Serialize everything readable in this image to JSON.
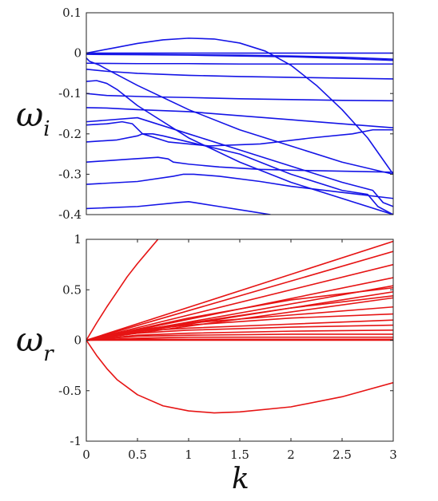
{
  "colors": {
    "top_series": "#1414e6",
    "bottom_series": "#e61414",
    "axes": "#222222"
  },
  "labels": {
    "top_ylabel_main": "ω",
    "top_ylabel_sub": "i",
    "bottom_ylabel_main": "ω",
    "bottom_ylabel_sub": "r",
    "xlabel": "k"
  },
  "chart_data": [
    {
      "type": "line",
      "xlabel": "",
      "ylabel": "ωi",
      "xlim": [
        0,
        3
      ],
      "ylim": [
        -0.4,
        0.1
      ],
      "xticks": [],
      "yticks": [
        0.1,
        0,
        -0.1,
        -0.2,
        -0.3,
        -0.4
      ],
      "ytick_labels": [
        "0.1",
        "0",
        "-0.1",
        "-0.2",
        "-0.3",
        "-0.4"
      ],
      "grid": false,
      "color": "#1414e6",
      "series": [
        {
          "x": [
            0,
            0.25,
            0.5,
            0.75,
            1.0,
            1.25,
            1.5,
            1.75,
            2.0,
            2.25,
            2.5,
            2.75,
            3.0
          ],
          "y": [
            0,
            0.012,
            0.024,
            0.033,
            0.037,
            0.035,
            0.025,
            0.005,
            -0.03,
            -0.08,
            -0.14,
            -0.21,
            -0.3
          ]
        },
        {
          "x": [
            0,
            0.5,
            1,
            1.5,
            2,
            2.5,
            3
          ],
          "y": [
            0,
            0,
            0,
            0,
            0,
            0,
            0
          ]
        },
        {
          "x": [
            0,
            0.5,
            1,
            1.5,
            2,
            2.5,
            3
          ],
          "y": [
            -0.002,
            -0.003,
            -0.004,
            -0.005,
            -0.007,
            -0.01,
            -0.015
          ]
        },
        {
          "x": [
            0,
            0.5,
            1,
            1.5,
            2,
            2.5,
            3
          ],
          "y": [
            -0.003,
            -0.004,
            -0.005,
            -0.007,
            -0.009,
            -0.013,
            -0.018
          ]
        },
        {
          "x": [
            0,
            0.03,
            0.08,
            0.13,
            0.2,
            0.5,
            1,
            1.5,
            2,
            2.5,
            3
          ],
          "y": [
            -0.012,
            -0.02,
            -0.025,
            -0.03,
            -0.04,
            -0.08,
            -0.14,
            -0.19,
            -0.23,
            -0.27,
            -0.3
          ]
        },
        {
          "x": [
            0,
            0.5,
            1,
            1.5,
            2,
            2.5,
            3
          ],
          "y": [
            -0.025,
            -0.026,
            -0.026,
            -0.027,
            -0.027,
            -0.027,
            -0.027
          ]
        },
        {
          "x": [
            0,
            0.2,
            0.5,
            1,
            1.5,
            2,
            2.5,
            3
          ],
          "y": [
            -0.04,
            -0.045,
            -0.05,
            -0.055,
            -0.058,
            -0.06,
            -0.062,
            -0.064
          ]
        },
        {
          "x": [
            0,
            0.1,
            0.2,
            0.3,
            0.5,
            1,
            1.5,
            2,
            2.5,
            3
          ],
          "y": [
            -0.07,
            -0.068,
            -0.075,
            -0.09,
            -0.13,
            -0.21,
            -0.27,
            -0.32,
            -0.36,
            -0.4
          ]
        },
        {
          "x": [
            0,
            0.2,
            0.6,
            1,
            1.5,
            2,
            2.5,
            3
          ],
          "y": [
            -0.1,
            -0.105,
            -0.108,
            -0.11,
            -0.113,
            -0.115,
            -0.117,
            -0.118
          ]
        },
        {
          "x": [
            0,
            0.2,
            0.5,
            1,
            1.5,
            2,
            2.5,
            3
          ],
          "y": [
            -0.135,
            -0.136,
            -0.14,
            -0.145,
            -0.155,
            -0.165,
            -0.175,
            -0.185
          ]
        },
        {
          "x": [
            0,
            0.2,
            0.35,
            0.45,
            0.55,
            0.8,
            1.2,
            1.7,
            2.2,
            2.6,
            2.8,
            3
          ],
          "y": [
            -0.178,
            -0.175,
            -0.17,
            -0.175,
            -0.2,
            -0.22,
            -0.23,
            -0.225,
            -0.21,
            -0.2,
            -0.19,
            -0.19
          ]
        },
        {
          "x": [
            0,
            0.3,
            0.5,
            0.55,
            0.65,
            0.75,
            1,
            1.5,
            2,
            2.5,
            2.75,
            2.85,
            3
          ],
          "y": [
            -0.22,
            -0.215,
            -0.205,
            -0.2,
            -0.2,
            -0.205,
            -0.22,
            -0.25,
            -0.3,
            -0.34,
            -0.35,
            -0.38,
            -0.4
          ]
        },
        {
          "x": [
            0,
            0.4,
            0.7,
            0.8,
            0.85,
            1,
            1.3,
            1.7,
            2,
            2.4,
            2.8,
            3
          ],
          "y": [
            -0.27,
            -0.263,
            -0.258,
            -0.262,
            -0.27,
            -0.275,
            -0.282,
            -0.288,
            -0.29,
            -0.292,
            -0.294,
            -0.295
          ]
        },
        {
          "x": [
            0,
            0.5,
            0.85,
            0.95,
            1.05,
            1.3,
            1.7,
            2,
            2.5,
            3
          ],
          "y": [
            -0.325,
            -0.318,
            -0.305,
            -0.3,
            -0.3,
            -0.305,
            -0.318,
            -0.33,
            -0.345,
            -0.36
          ]
        },
        {
          "x": [
            0,
            0.5,
            0.9,
            1,
            1.1,
            1.3,
            1.6,
            1.8
          ],
          "y": [
            -0.385,
            -0.38,
            -0.37,
            -0.368,
            -0.372,
            -0.38,
            -0.392,
            -0.4
          ]
        },
        {
          "x": [
            0,
            0.5,
            1,
            1.5,
            2,
            2.5,
            2.8,
            2.9,
            3
          ],
          "y": [
            -0.17,
            -0.16,
            -0.2,
            -0.24,
            -0.28,
            -0.32,
            -0.34,
            -0.37,
            -0.38
          ]
        }
      ]
    },
    {
      "type": "line",
      "xlabel": "k",
      "ylabel": "ωr",
      "xlim": [
        0,
        3
      ],
      "ylim": [
        -1,
        1
      ],
      "xticks": [
        0,
        0.5,
        1,
        1.5,
        2,
        2.5,
        3
      ],
      "xtick_labels": [
        "0",
        "0.5",
        "1",
        "1.5",
        "2",
        "2.5",
        "3"
      ],
      "yticks": [
        1,
        0.5,
        0,
        -0.5,
        -1
      ],
      "ytick_labels": [
        "1",
        "0.5",
        "0",
        "-0.5",
        "-1"
      ],
      "grid": false,
      "color": "#e61414",
      "series": [
        {
          "x": [
            0,
            0.1,
            0.2,
            0.3,
            0.4,
            0.5,
            0.6,
            0.7
          ],
          "y": [
            0,
            0.17,
            0.33,
            0.48,
            0.63,
            0.76,
            0.88,
            1.0
          ]
        },
        {
          "x": [
            0,
            0.1,
            0.2,
            0.3,
            0.5,
            0.75,
            1,
            1.25,
            1.5,
            2,
            2.5,
            3
          ],
          "y": [
            0,
            -0.15,
            -0.28,
            -0.39,
            -0.54,
            -0.65,
            -0.7,
            -0.72,
            -0.71,
            -0.66,
            -0.56,
            -0.42
          ]
        },
        {
          "x": [
            0,
            3
          ],
          "y": [
            0,
            0.98
          ]
        },
        {
          "x": [
            0,
            3
          ],
          "y": [
            0,
            0.88
          ]
        },
        {
          "x": [
            0,
            3
          ],
          "y": [
            0,
            0.75
          ]
        },
        {
          "x": [
            0,
            3
          ],
          "y": [
            0,
            0.62
          ]
        },
        {
          "x": [
            0,
            3
          ],
          "y": [
            0,
            0.54
          ]
        },
        {
          "x": [
            0,
            3
          ],
          "y": [
            0,
            0.48
          ]
        },
        {
          "x": [
            0,
            3
          ],
          "y": [
            0,
            0.42
          ]
        },
        {
          "x": [
            0,
            1,
            2,
            3
          ],
          "y": [
            0,
            0.22,
            0.4,
            0.52
          ]
        },
        {
          "x": [
            0,
            1,
            2,
            3
          ],
          "y": [
            0,
            0.17,
            0.32,
            0.44
          ]
        },
        {
          "x": [
            0,
            0.5,
            1,
            2,
            3
          ],
          "y": [
            0,
            0.1,
            0.17,
            0.25,
            0.33
          ]
        },
        {
          "x": [
            0,
            0.5,
            1,
            2,
            3
          ],
          "y": [
            0,
            0.1,
            0.15,
            0.22,
            0.26
          ]
        },
        {
          "x": [
            0,
            0.5,
            1,
            2,
            3
          ],
          "y": [
            0,
            0.09,
            0.12,
            0.16,
            0.2
          ]
        },
        {
          "x": [
            0,
            0.5,
            1,
            2,
            3
          ],
          "y": [
            0,
            0.07,
            0.1,
            0.13,
            0.15
          ]
        },
        {
          "x": [
            0,
            0.5,
            1,
            2,
            3
          ],
          "y": [
            0,
            0.05,
            0.07,
            0.09,
            0.1
          ]
        },
        {
          "x": [
            0,
            0.5,
            1,
            2,
            3
          ],
          "y": [
            0,
            0.04,
            0.05,
            0.06,
            0.06
          ]
        },
        {
          "x": [
            0,
            0.5,
            1,
            2,
            3
          ],
          "y": [
            0,
            0.02,
            0.03,
            0.03,
            0.03
          ]
        },
        {
          "x": [
            0,
            0.5,
            1,
            2,
            3
          ],
          "y": [
            0,
            0.01,
            0.01,
            0.01,
            0.01
          ]
        },
        {
          "x": [
            0,
            0.5,
            1,
            2,
            3
          ],
          "y": [
            0,
            0,
            0,
            0,
            0
          ]
        }
      ]
    }
  ]
}
